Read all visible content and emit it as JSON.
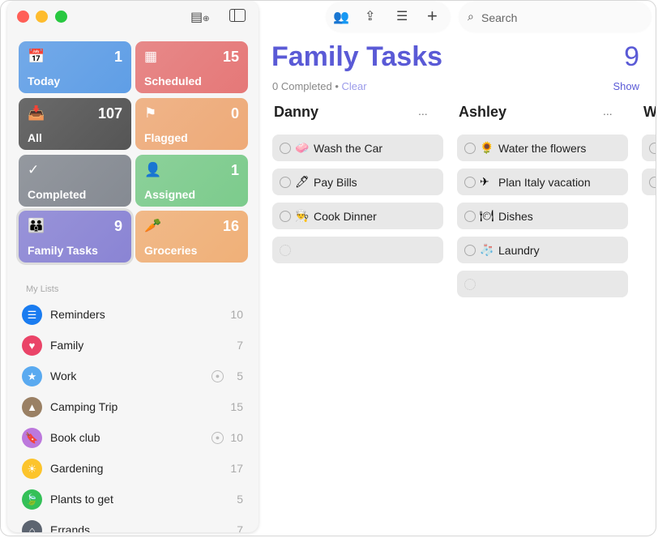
{
  "window": {
    "traffic_lights": [
      "#ff5f57",
      "#febc2e",
      "#28c840"
    ]
  },
  "sidebar": {
    "toolbar": {
      "new_list_icon": "list-add-icon",
      "toggle_icon": "sidebar-icon"
    },
    "smart_lists": [
      {
        "label": "Today",
        "count": "1",
        "icon": "calendar-today-icon",
        "glyph": "📅",
        "color": "#5f9ee6"
      },
      {
        "label": "Scheduled",
        "count": "15",
        "icon": "calendar-grid-icon",
        "glyph": "▦",
        "color": "#e57878"
      },
      {
        "label": "All",
        "count": "107",
        "icon": "tray-icon",
        "glyph": "📥",
        "color": "#555555"
      },
      {
        "label": "Flagged",
        "count": "0",
        "icon": "flag-icon",
        "glyph": "⚑",
        "color": "#eeaa78"
      },
      {
        "label": "Completed",
        "count": "",
        "icon": "checkmark-icon",
        "glyph": "✓",
        "color": "#858a92"
      },
      {
        "label": "Assigned",
        "count": "1",
        "icon": "person-icon",
        "glyph": "👤",
        "color": "#7ccb8c"
      },
      {
        "label": "Family Tasks",
        "count": "9",
        "icon": "family-icon",
        "glyph": "👪",
        "color": "#8a84d4"
      },
      {
        "label": "Groceries",
        "count": "16",
        "icon": "carrot-icon",
        "glyph": "🥕",
        "color": "#f0b078"
      }
    ],
    "my_lists_header": "My Lists",
    "lists": [
      {
        "name": "Reminders",
        "count": "10",
        "icon": "list-bullet-icon",
        "glyph": "☰",
        "color": "#1a7cf0",
        "shared": false
      },
      {
        "name": "Family",
        "count": "7",
        "icon": "heart-icon",
        "glyph": "♥",
        "color": "#ea4468",
        "shared": false
      },
      {
        "name": "Work",
        "count": "5",
        "icon": "star-icon",
        "glyph": "★",
        "color": "#5aaaf0",
        "shared": true
      },
      {
        "name": "Camping Trip",
        "count": "15",
        "icon": "tent-icon",
        "glyph": "▲",
        "color": "#9a8064",
        "shared": false
      },
      {
        "name": "Book club",
        "count": "10",
        "icon": "bookmark-icon",
        "glyph": "🔖",
        "color": "#bc78dc",
        "shared": true
      },
      {
        "name": "Gardening",
        "count": "17",
        "icon": "sun-icon",
        "glyph": "☀",
        "color": "#fcc42c",
        "shared": false
      },
      {
        "name": "Plants to get",
        "count": "5",
        "icon": "leaf-icon",
        "glyph": "🍃",
        "color": "#34c058",
        "shared": false
      },
      {
        "name": "Errands",
        "count": "7",
        "icon": "house-icon",
        "glyph": "⌂",
        "color": "#5c6470",
        "shared": false
      }
    ]
  },
  "toolbar": {
    "search_placeholder": "Search"
  },
  "main": {
    "title": "Family Tasks",
    "count": "9",
    "completed": "0 Completed",
    "sep": "•",
    "clear": "Clear",
    "show": "Show",
    "accent": "#5a5ad6",
    "columns": [
      {
        "name": "Danny",
        "more": "...",
        "tasks": [
          {
            "emoji": "🧼",
            "text": "Wash the Car"
          },
          {
            "emoji": "🖊",
            "text": "Pay Bills"
          },
          {
            "emoji": "👨‍🍳",
            "text": "Cook Dinner"
          }
        ]
      },
      {
        "name": "Ashley",
        "more": "...",
        "tasks": [
          {
            "emoji": "🌻",
            "text": "Water the flowers"
          },
          {
            "emoji": "✈",
            "text": "Plan Italy vacation"
          },
          {
            "emoji": "🍽",
            "text": "Dishes"
          },
          {
            "emoji": "🧦",
            "text": "Laundry"
          }
        ]
      },
      {
        "name": "Wil"
      }
    ]
  }
}
